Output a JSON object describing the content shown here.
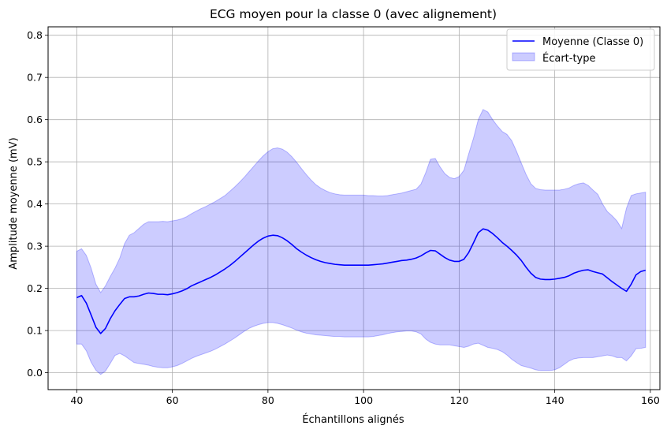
{
  "chart_data": {
    "type": "line",
    "title": "ECG moyen pour la classe 0 (avec alignement)",
    "xlabel": "Échantillons alignés",
    "ylabel": "Amplitude moyenne (mV)",
    "xlim": [
      34,
      162
    ],
    "ylim": [
      -0.04,
      0.82
    ],
    "xticks": [
      40,
      60,
      80,
      100,
      120,
      140,
      160
    ],
    "yticks": [
      0.0,
      0.1,
      0.2,
      0.3,
      0.4,
      0.5,
      0.6,
      0.7,
      0.8
    ],
    "xtick_labels": [
      "40",
      "60",
      "80",
      "100",
      "120",
      "140",
      "160"
    ],
    "ytick_labels": [
      "0.0",
      "0.1",
      "0.2",
      "0.3",
      "0.4",
      "0.5",
      "0.6",
      "0.7",
      "0.8"
    ],
    "grid": true,
    "legend_position": "top-right",
    "x": [
      40,
      41,
      42,
      43,
      44,
      45,
      46,
      47,
      48,
      49,
      50,
      51,
      52,
      53,
      54,
      55,
      56,
      57,
      58,
      59,
      60,
      61,
      62,
      63,
      64,
      65,
      66,
      67,
      68,
      69,
      70,
      71,
      72,
      73,
      74,
      75,
      76,
      77,
      78,
      79,
      80,
      81,
      82,
      83,
      84,
      85,
      86,
      87,
      88,
      89,
      90,
      91,
      92,
      93,
      94,
      95,
      96,
      97,
      98,
      99,
      100,
      101,
      102,
      103,
      104,
      105,
      106,
      107,
      108,
      109,
      110,
      111,
      112,
      113,
      114,
      115,
      116,
      117,
      118,
      119,
      120,
      121,
      122,
      123,
      124,
      125,
      126,
      127,
      128,
      129,
      130,
      131,
      132,
      133,
      134,
      135,
      136,
      137,
      138,
      139,
      140,
      141,
      142,
      143,
      144,
      145,
      146,
      147,
      148,
      149,
      150,
      151,
      152,
      153,
      154,
      155,
      156,
      157,
      158,
      159
    ],
    "series": [
      {
        "name": "Moyenne (Classe 0)",
        "kind": "line",
        "color": "#0000ff",
        "values": [
          0.178,
          0.183,
          0.165,
          0.137,
          0.108,
          0.093,
          0.105,
          0.128,
          0.147,
          0.162,
          0.176,
          0.18,
          0.18,
          0.182,
          0.186,
          0.189,
          0.188,
          0.186,
          0.186,
          0.185,
          0.187,
          0.19,
          0.194,
          0.199,
          0.206,
          0.211,
          0.216,
          0.221,
          0.226,
          0.232,
          0.239,
          0.246,
          0.254,
          0.263,
          0.273,
          0.283,
          0.293,
          0.303,
          0.312,
          0.319,
          0.324,
          0.326,
          0.325,
          0.32,
          0.313,
          0.304,
          0.294,
          0.286,
          0.279,
          0.273,
          0.268,
          0.264,
          0.261,
          0.259,
          0.257,
          0.256,
          0.255,
          0.255,
          0.255,
          0.255,
          0.255,
          0.255,
          0.256,
          0.257,
          0.258,
          0.26,
          0.262,
          0.264,
          0.266,
          0.267,
          0.269,
          0.272,
          0.277,
          0.284,
          0.29,
          0.289,
          0.281,
          0.273,
          0.267,
          0.264,
          0.264,
          0.269,
          0.285,
          0.308,
          0.332,
          0.341,
          0.338,
          0.33,
          0.32,
          0.309,
          0.3,
          0.29,
          0.279,
          0.266,
          0.25,
          0.236,
          0.226,
          0.222,
          0.221,
          0.221,
          0.222,
          0.224,
          0.226,
          0.23,
          0.236,
          0.24,
          0.243,
          0.244,
          0.24,
          0.237,
          0.234,
          0.225,
          0.216,
          0.208,
          0.2,
          0.193,
          0.21,
          0.232,
          0.24,
          0.243
        ]
      },
      {
        "name": "Écart-type",
        "kind": "band",
        "color": "#0000ff",
        "opacity": 0.2,
        "upper": [
          0.288,
          0.294,
          0.278,
          0.248,
          0.21,
          0.19,
          0.206,
          0.228,
          0.248,
          0.272,
          0.306,
          0.326,
          0.332,
          0.342,
          0.352,
          0.358,
          0.358,
          0.358,
          0.359,
          0.358,
          0.36,
          0.362,
          0.365,
          0.37,
          0.377,
          0.383,
          0.389,
          0.394,
          0.4,
          0.406,
          0.413,
          0.42,
          0.43,
          0.44,
          0.451,
          0.463,
          0.476,
          0.489,
          0.502,
          0.514,
          0.524,
          0.531,
          0.533,
          0.53,
          0.523,
          0.512,
          0.499,
          0.484,
          0.47,
          0.457,
          0.446,
          0.438,
          0.432,
          0.427,
          0.424,
          0.422,
          0.421,
          0.421,
          0.421,
          0.421,
          0.421,
          0.42,
          0.42,
          0.419,
          0.419,
          0.42,
          0.422,
          0.424,
          0.426,
          0.429,
          0.432,
          0.435,
          0.447,
          0.474,
          0.506,
          0.508,
          0.488,
          0.472,
          0.463,
          0.46,
          0.465,
          0.48,
          0.519,
          0.556,
          0.6,
          0.624,
          0.618,
          0.6,
          0.585,
          0.572,
          0.565,
          0.55,
          0.525,
          0.497,
          0.47,
          0.448,
          0.437,
          0.434,
          0.433,
          0.433,
          0.433,
          0.433,
          0.435,
          0.438,
          0.444,
          0.448,
          0.45,
          0.444,
          0.433,
          0.423,
          0.4,
          0.382,
          0.372,
          0.36,
          0.342,
          0.39,
          0.42,
          0.424,
          0.426,
          0.428
        ],
        "lower": [
          0.068,
          0.068,
          0.052,
          0.025,
          0.006,
          -0.004,
          0.004,
          0.022,
          0.041,
          0.046,
          0.04,
          0.032,
          0.024,
          0.022,
          0.02,
          0.018,
          0.015,
          0.013,
          0.012,
          0.012,
          0.014,
          0.017,
          0.022,
          0.028,
          0.034,
          0.039,
          0.043,
          0.047,
          0.051,
          0.056,
          0.062,
          0.068,
          0.075,
          0.082,
          0.09,
          0.098,
          0.105,
          0.11,
          0.114,
          0.117,
          0.119,
          0.119,
          0.117,
          0.114,
          0.11,
          0.106,
          0.101,
          0.097,
          0.094,
          0.092,
          0.09,
          0.089,
          0.088,
          0.087,
          0.086,
          0.086,
          0.085,
          0.085,
          0.085,
          0.085,
          0.085,
          0.085,
          0.086,
          0.088,
          0.09,
          0.093,
          0.095,
          0.097,
          0.098,
          0.099,
          0.099,
          0.097,
          0.092,
          0.08,
          0.072,
          0.068,
          0.066,
          0.066,
          0.066,
          0.064,
          0.062,
          0.06,
          0.063,
          0.068,
          0.07,
          0.065,
          0.06,
          0.058,
          0.055,
          0.05,
          0.042,
          0.032,
          0.024,
          0.017,
          0.014,
          0.011,
          0.007,
          0.005,
          0.005,
          0.005,
          0.007,
          0.012,
          0.02,
          0.028,
          0.033,
          0.035,
          0.036,
          0.036,
          0.036,
          0.038,
          0.04,
          0.042,
          0.04,
          0.036,
          0.036,
          0.028,
          0.04,
          0.057,
          0.058,
          0.06
        ]
      }
    ]
  }
}
